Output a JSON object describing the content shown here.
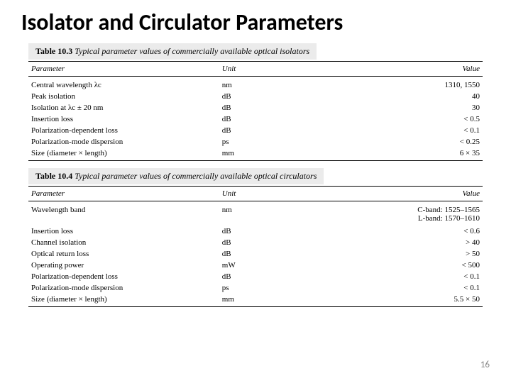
{
  "title": "Isolator and Circulator Parameters",
  "page_number": "16",
  "colors": {
    "background": "#ffffff",
    "text": "#000000",
    "caption_bg": "#ebebeb",
    "page_num": "#888888",
    "rule": "#000000"
  },
  "tables": [
    {
      "number": "Table 10.3",
      "caption": "Typical parameter values of commercially available optical isolators",
      "headers": {
        "param": "Parameter",
        "unit": "Unit",
        "value": "Value"
      },
      "rows": [
        {
          "param": "Central wavelength λc",
          "unit": "nm",
          "value": "1310, 1550"
        },
        {
          "param": "Peak isolation",
          "unit": "dB",
          "value": "40"
        },
        {
          "param": "Isolation at λc ± 20 nm",
          "unit": "dB",
          "value": "30"
        },
        {
          "param": "Insertion loss",
          "unit": "dB",
          "value": "< 0.5"
        },
        {
          "param": "Polarization-dependent loss",
          "unit": "dB",
          "value": "< 0.1"
        },
        {
          "param": "Polarization-mode dispersion",
          "unit": "ps",
          "value": "< 0.25"
        },
        {
          "param": "Size (diameter × length)",
          "unit": "mm",
          "value": "6 × 35"
        }
      ]
    },
    {
      "number": "Table 10.4",
      "caption": "Typical parameter values of commercially available optical circulators",
      "headers": {
        "param": "Parameter",
        "unit": "Unit",
        "value": "Value"
      },
      "rows": [
        {
          "param": "Wavelength band",
          "unit": "nm",
          "value": "C-band: 1525–1565\nL-band: 1570–1610"
        },
        {
          "param": "Insertion loss",
          "unit": "dB",
          "value": "< 0.6"
        },
        {
          "param": "Channel isolation",
          "unit": "dB",
          "value": "> 40"
        },
        {
          "param": "Optical return loss",
          "unit": "dB",
          "value": "> 50"
        },
        {
          "param": "Operating power",
          "unit": "mW",
          "value": "< 500"
        },
        {
          "param": "Polarization-dependent loss",
          "unit": "dB",
          "value": "< 0.1"
        },
        {
          "param": "Polarization-mode dispersion",
          "unit": "ps",
          "value": "< 0.1"
        },
        {
          "param": "Size (diameter × length)",
          "unit": "mm",
          "value": "5.5 × 50"
        }
      ]
    }
  ]
}
